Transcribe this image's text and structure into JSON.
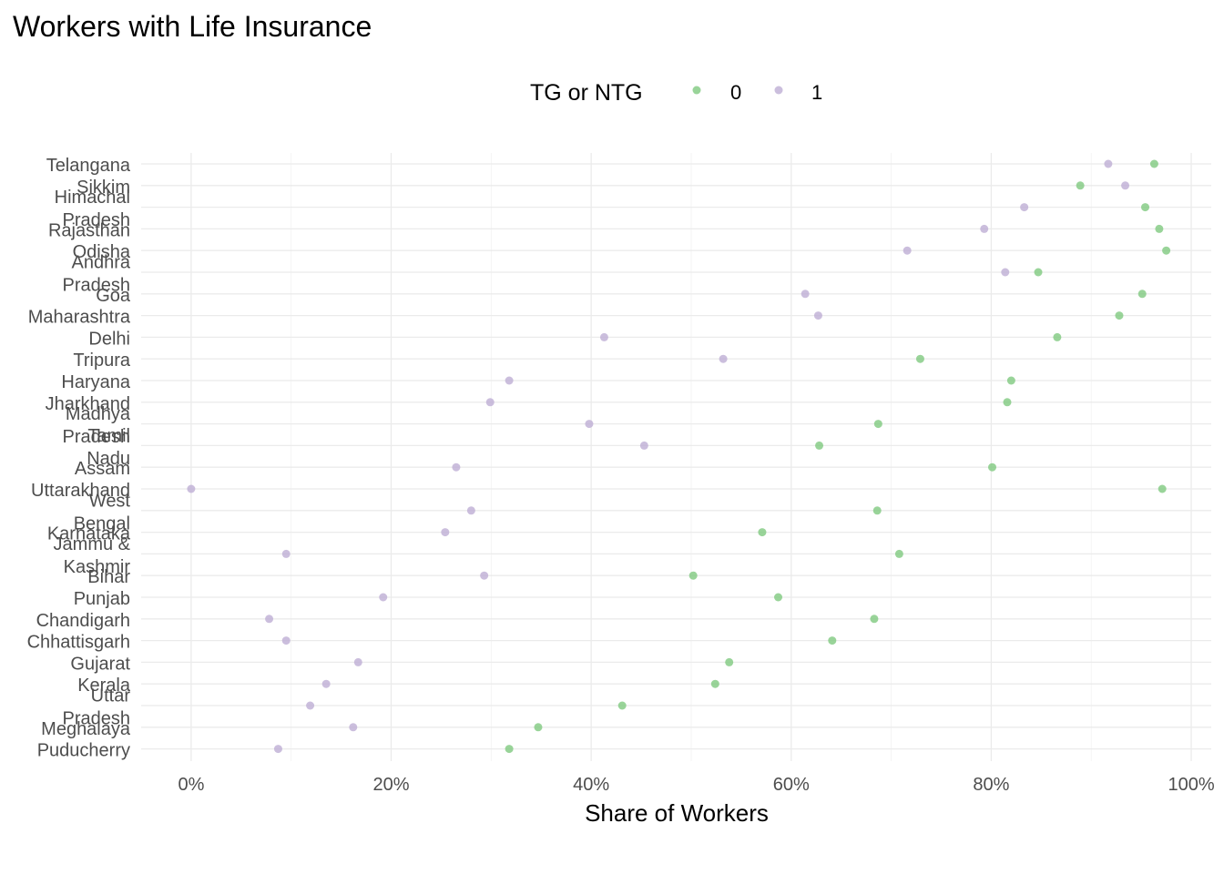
{
  "chart_data": {
    "type": "scatter",
    "title": "Workers with Life Insurance",
    "xlabel": "Share of Workers",
    "ylabel": "",
    "xlim": [
      -0.05,
      1.02
    ],
    "x_ticks": [
      {
        "value": 0.0,
        "label": "0%"
      },
      {
        "value": 0.2,
        "label": "20%"
      },
      {
        "value": 0.4,
        "label": "40%"
      },
      {
        "value": 0.6,
        "label": "60%"
      },
      {
        "value": 0.8,
        "label": "80%"
      },
      {
        "value": 1.0,
        "label": "100%"
      }
    ],
    "grid": true,
    "legend": {
      "title": "TG or NTG",
      "position": "top"
    },
    "categories": [
      [
        "Telangana"
      ],
      [
        "Sikkim"
      ],
      [
        "Himachal",
        "Pradesh"
      ],
      [
        "Rajasthan"
      ],
      [
        "Odisha"
      ],
      [
        "Andhra",
        "Pradesh"
      ],
      [
        "Goa"
      ],
      [
        "Maharashtra"
      ],
      [
        "Delhi"
      ],
      [
        "Tripura"
      ],
      [
        "Haryana"
      ],
      [
        "Jharkhand"
      ],
      [
        "Madhya",
        "Pradesh"
      ],
      [
        "Tamil",
        "Nadu"
      ],
      [
        "Assam"
      ],
      [
        "Uttarakhand"
      ],
      [
        "West",
        "Bengal"
      ],
      [
        "Karnataka"
      ],
      [
        "Jammu &",
        "Kashmir"
      ],
      [
        "Bihar"
      ],
      [
        "Punjab"
      ],
      [
        "Chandigarh"
      ],
      [
        "Chhattisgarh"
      ],
      [
        "Gujarat"
      ],
      [
        "Kerala"
      ],
      [
        "Uttar",
        "Pradesh"
      ],
      [
        "Meghalaya"
      ],
      [
        "Puducherry"
      ]
    ],
    "series": [
      {
        "name": "0",
        "color": "#7fc97f",
        "values": [
          0.963,
          0.889,
          0.954,
          0.968,
          0.975,
          0.847,
          0.951,
          0.928,
          0.866,
          0.729,
          0.82,
          0.816,
          0.687,
          0.628,
          0.801,
          0.971,
          0.686,
          0.571,
          0.708,
          0.502,
          0.587,
          0.683,
          0.641,
          0.538,
          0.524,
          0.431,
          0.347,
          0.318
        ]
      },
      {
        "name": "1",
        "color": "#beaed4",
        "values": [
          0.917,
          0.934,
          0.833,
          0.793,
          0.716,
          0.814,
          0.614,
          0.627,
          0.413,
          0.532,
          0.318,
          0.299,
          0.398,
          0.453,
          0.265,
          0.0,
          0.28,
          0.254,
          0.095,
          0.293,
          0.192,
          0.078,
          0.095,
          0.167,
          0.135,
          0.119,
          0.162,
          0.087
        ]
      }
    ]
  }
}
